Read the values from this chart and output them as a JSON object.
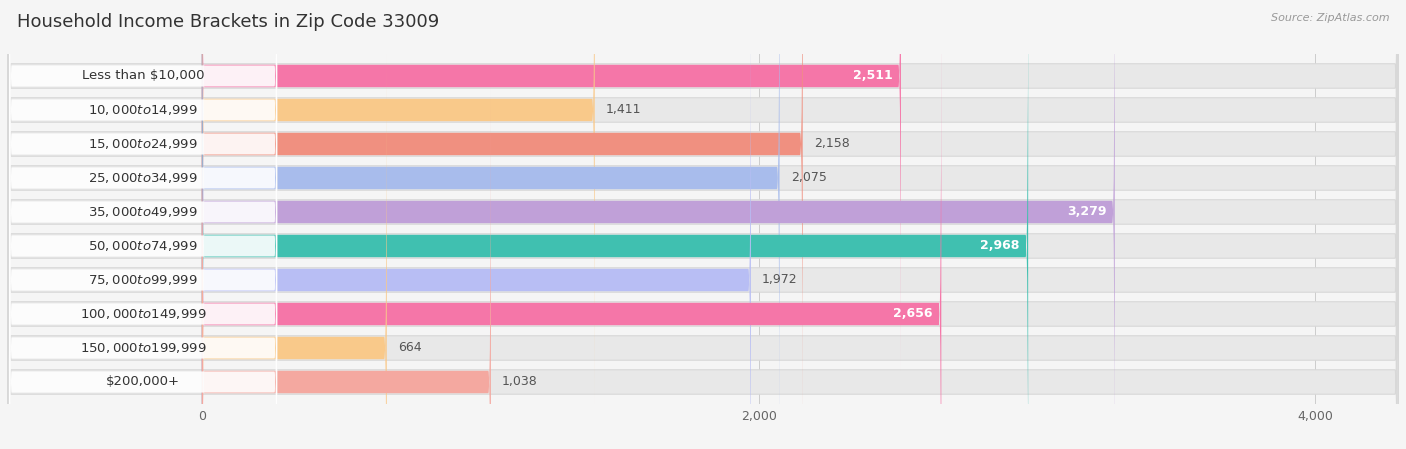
{
  "title": "Household Income Brackets in Zip Code 33009",
  "source": "Source: ZipAtlas.com",
  "categories": [
    "Less than $10,000",
    "$10,000 to $14,999",
    "$15,000 to $24,999",
    "$25,000 to $34,999",
    "$35,000 to $49,999",
    "$50,000 to $74,999",
    "$75,000 to $99,999",
    "$100,000 to $149,999",
    "$150,000 to $199,999",
    "$200,000+"
  ],
  "values": [
    2511,
    1411,
    2158,
    2075,
    3279,
    2968,
    1972,
    2656,
    664,
    1038
  ],
  "bar_colors": [
    "#f576a8",
    "#f9c98a",
    "#f09080",
    "#a8bcec",
    "#c0a0d8",
    "#40c0b0",
    "#b8bef4",
    "#f576a8",
    "#f9c98a",
    "#f4a8a0"
  ],
  "value_inside": [
    true,
    false,
    false,
    false,
    true,
    true,
    false,
    true,
    false,
    false
  ],
  "bg_color": "#f5f5f5",
  "bar_bg_color": "#e8e8e8",
  "bar_bg_border": "#d8d8d8",
  "xlim_left": -700,
  "xlim_right": 4300,
  "xticks": [
    0,
    2000,
    4000
  ],
  "title_fontsize": 13,
  "label_fontsize": 9.5,
  "value_fontsize": 9
}
